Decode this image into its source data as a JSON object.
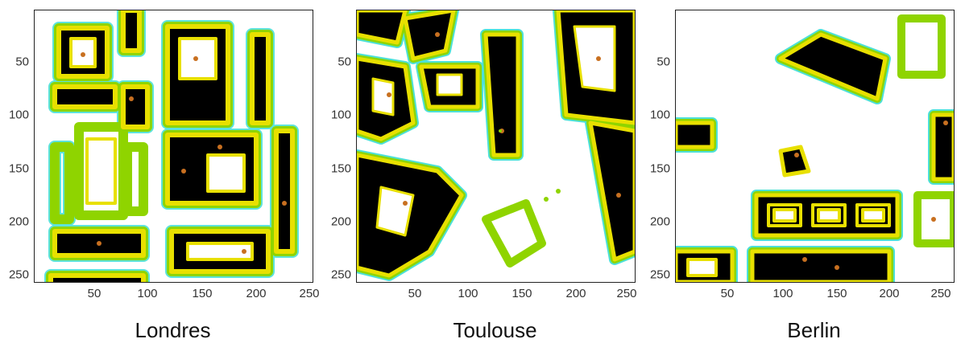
{
  "figure": {
    "panels": [
      {
        "caption": "Londres",
        "y_ticks": [
          "50",
          "100",
          "150",
          "200",
          "250"
        ],
        "x_ticks": [
          "50",
          "100",
          "150",
          "200",
          "250"
        ]
      },
      {
        "caption": "Toulouse",
        "y_ticks": [
          "50",
          "100",
          "150",
          "200",
          "250"
        ],
        "x_ticks": [
          "50",
          "100",
          "150",
          "200",
          "250"
        ]
      },
      {
        "caption": "Berlin",
        "y_ticks": [
          "50",
          "100",
          "150",
          "200",
          "250"
        ],
        "x_ticks": [
          "50",
          "100",
          "150",
          "200",
          "250"
        ]
      }
    ],
    "colors": {
      "building": "#000000",
      "edge_inner": "#e8e000",
      "edge_outer": "#8fd400",
      "edge_shadow": "#4ce0d8",
      "dots": "#c87020"
    }
  }
}
